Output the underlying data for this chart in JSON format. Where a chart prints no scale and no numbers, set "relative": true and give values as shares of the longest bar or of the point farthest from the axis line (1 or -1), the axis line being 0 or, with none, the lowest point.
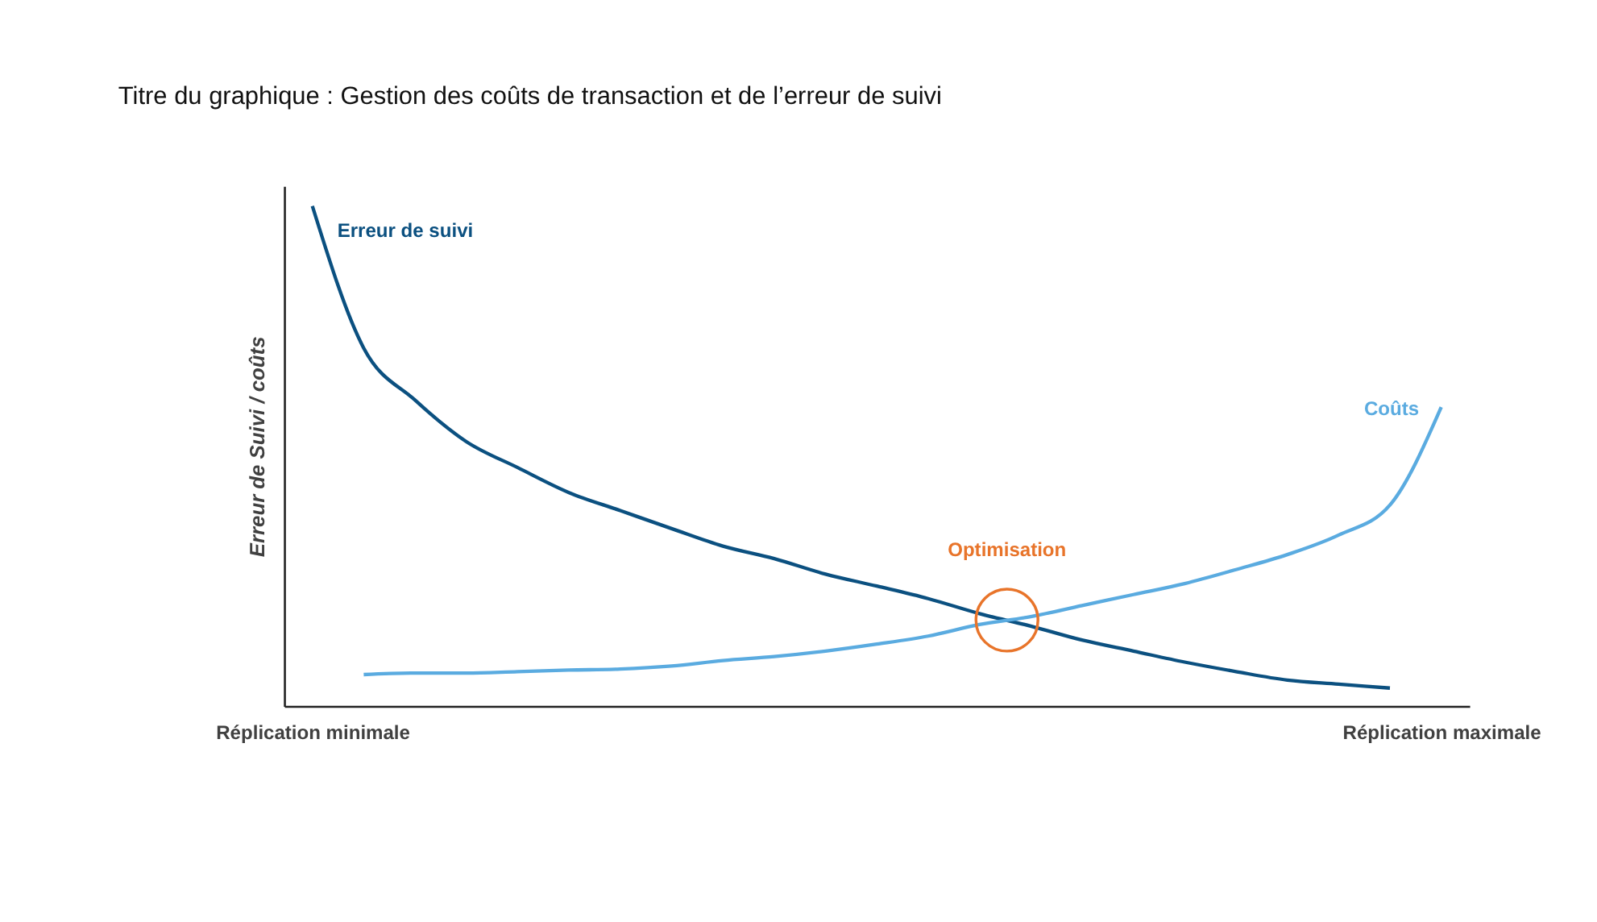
{
  "chart_data": {
    "type": "line",
    "title": "Titre du graphique : Gestion des coûts de transaction et de l’erreur de suivi",
    "ylabel": "Erreur de Suivi / coûts",
    "relative": true,
    "categories": [
      "Réplication minimale",
      null,
      null,
      null,
      null,
      null,
      null,
      null,
      null,
      null,
      null,
      null,
      null,
      null,
      null,
      null,
      null,
      null,
      null,
      null,
      null,
      null,
      "Réplication maximale"
    ],
    "series": [
      {
        "name": "Erreur de suivi",
        "color": "#0b5080",
        "values": [
          1.0,
          0.716,
          0.612,
          0.529,
          0.477,
          0.427,
          0.391,
          0.355,
          0.32,
          0.295,
          0.264,
          0.24,
          0.215,
          0.185,
          0.16,
          0.132,
          0.11,
          0.088,
          0.069,
          0.052,
          0.044,
          0.036,
          null
        ]
      },
      {
        "name": "Coûts",
        "color": "#5aabe0",
        "values": [
          null,
          0.063,
          0.066,
          0.066,
          0.069,
          0.072,
          0.074,
          0.08,
          0.091,
          0.099,
          0.11,
          0.124,
          0.14,
          0.163,
          0.179,
          0.201,
          0.223,
          0.245,
          0.273,
          0.303,
          0.342,
          0.402,
          0.598
        ]
      }
    ],
    "annotations": [
      {
        "text": "Optimisation",
        "y": 0.172
      }
    ],
    "grid": false,
    "line_style": "solid",
    "marker": "none"
  }
}
